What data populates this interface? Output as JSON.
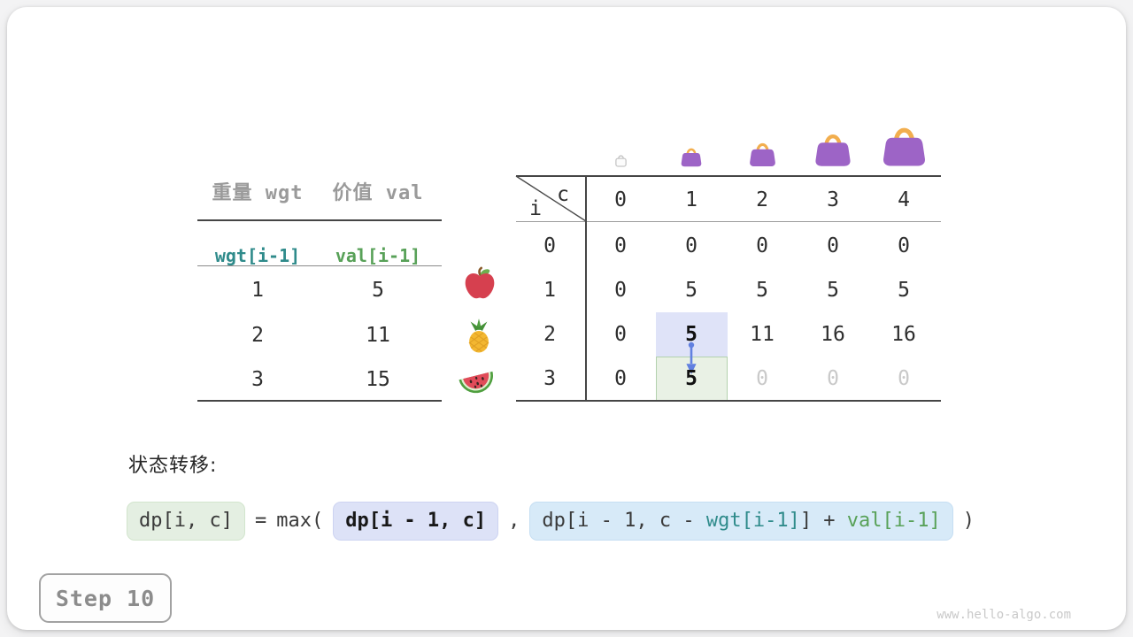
{
  "meta": {
    "step_label": "Step 10",
    "watermark": "www.hello-algo.com"
  },
  "colors": {
    "outer_bg": "#f3f3f4",
    "teal": "#2f8b8b",
    "green": "#58a158",
    "header_gray": "#9a9a9a",
    "faded_text": "#c9c9c9",
    "highlight_lavender": "#dfe3f8",
    "highlight_green": "#e9f1e5",
    "highlight_green_border": "#b3d2ae",
    "formula_green_bg": "#e4efe2",
    "formula_lavender_bg": "#dde2f7",
    "formula_blue_bg": "#d7eaf8",
    "arrow_blue": "#6180e0",
    "bag_body": "#9d64c6",
    "bag_handle": "#f2ae4e",
    "apple_red": "#d6404f",
    "pineapple_yellow": "#f3b731",
    "leaf_green": "#4f9f3f",
    "melon_flesh": "#e14b59"
  },
  "items_table": {
    "col_headers": [
      "重量 wgt",
      "价值 val"
    ],
    "var_row": [
      "wgt[i-1]",
      "val[i-1]"
    ],
    "rows": [
      [
        "1",
        "5"
      ],
      [
        "2",
        "11"
      ],
      [
        "3",
        "15"
      ]
    ],
    "row_icons": [
      "apple-icon",
      "pineapple-icon",
      "watermelon-icon"
    ]
  },
  "dp_table": {
    "corner": {
      "col_var": "c",
      "row_var": "i"
    },
    "col_headers": [
      "0",
      "1",
      "2",
      "3",
      "4"
    ],
    "col_icons": [
      "empty-bag-icon",
      "bag-icon-1",
      "bag-icon-2",
      "bag-icon-3",
      "bag-icon-4"
    ],
    "row_headers": [
      "0",
      "1",
      "2",
      "3"
    ],
    "rows": [
      [
        "0",
        "0",
        "0",
        "0",
        "0"
      ],
      [
        "0",
        "5",
        "5",
        "5",
        "5"
      ],
      [
        "0",
        "5",
        "11",
        "16",
        "16"
      ],
      [
        "0",
        "5",
        "0",
        "0",
        "0"
      ]
    ],
    "bold_cells": [
      [
        2,
        1
      ],
      [
        3,
        1
      ]
    ],
    "faded_cells": [
      [
        3,
        2
      ],
      [
        3,
        3
      ],
      [
        3,
        4
      ]
    ],
    "highlight_source_cell": [
      2,
      1
    ],
    "highlight_target_cell": [
      3,
      1
    ]
  },
  "formula": {
    "label": "状态转移:",
    "result": "dp[i, c]",
    "equals": "=",
    "max_open": "max(",
    "option1": "dp[i - 1, c]",
    "comma": ",",
    "option2": {
      "prefix": "dp[i - 1, c - ",
      "wgt": "wgt[i-1]",
      "mid": "] + ",
      "val": "val[i-1]"
    },
    "close": ")"
  }
}
